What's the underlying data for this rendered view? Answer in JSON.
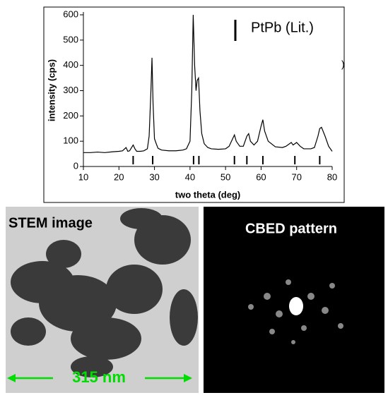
{
  "chart_data": {
    "type": "line",
    "xlabel": "two theta (deg)",
    "ylabel": "intensity (cps)",
    "xlim": [
      10,
      80
    ],
    "xticks": [
      10,
      20,
      30,
      40,
      50,
      60,
      70,
      80
    ],
    "ylim": [
      0,
      600
    ],
    "yticks": [
      0,
      100,
      200,
      300,
      400,
      500,
      600
    ],
    "x": [
      10,
      12,
      14,
      16,
      18,
      20,
      21,
      22,
      22.5,
      23,
      24,
      24.5,
      25,
      26,
      27,
      28,
      28.5,
      29,
      29.3,
      29.6,
      30,
      30.5,
      31,
      32,
      34,
      36,
      38,
      39,
      40,
      40.5,
      40.9,
      41.3,
      41.7,
      42,
      42.4,
      42.8,
      43.3,
      44,
      45,
      46,
      48,
      50,
      51,
      52,
      52.5,
      53,
      54,
      55,
      56,
      56.5,
      57,
      58,
      59,
      60,
      60.5,
      61,
      62,
      64,
      66,
      67,
      68,
      68.5,
      69,
      69.5,
      70,
      71,
      72,
      74,
      75,
      76,
      76.5,
      77,
      78,
      79,
      80
    ],
    "series": [
      {
        "color": "#000000",
        "values": [
          55,
          55,
          57,
          55,
          58,
          60,
          62,
          75,
          60,
          62,
          85,
          70,
          60,
          60,
          62,
          70,
          120,
          300,
          430,
          250,
          110,
          90,
          72,
          65,
          62,
          62,
          65,
          70,
          100,
          300,
          600,
          400,
          300,
          340,
          350,
          220,
          130,
          90,
          75,
          70,
          68,
          70,
          80,
          110,
          125,
          100,
          80,
          80,
          120,
          130,
          100,
          85,
          100,
          160,
          185,
          140,
          100,
          78,
          75,
          80,
          90,
          95,
          85,
          90,
          95,
          80,
          70,
          70,
          75,
          120,
          150,
          155,
          120,
          80,
          60
        ]
      }
    ],
    "reference": {
      "name": "PtPb (Lit.)",
      "color": "#000000",
      "positions": [
        24,
        29.5,
        41,
        42.5,
        52.5,
        56,
        60.5,
        69.5,
        76.5
      ]
    },
    "fragment": ")"
  },
  "panels": [
    {
      "label": "STEM image",
      "scale_bar": "315 nm"
    },
    {
      "label": "CBED pattern"
    }
  ]
}
